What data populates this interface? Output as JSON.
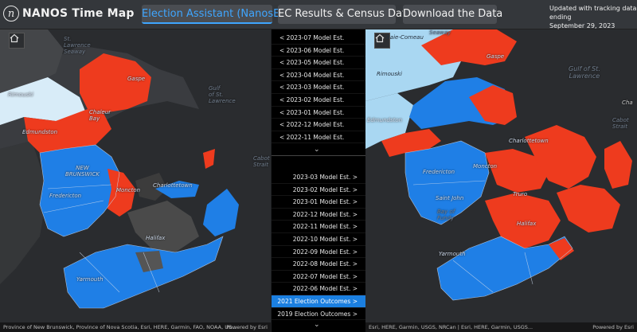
{
  "header": {
    "logo_glyph": "n",
    "title": "NANOS Time Map",
    "nav": [
      {
        "label": "Election Assistant (NanosEA)",
        "active": true
      },
      {
        "label": "EC Results & Census Data",
        "active": false
      },
      {
        "label": "Download the Data",
        "active": false
      }
    ],
    "updated_line1": "Updated with tracking data ending",
    "updated_line2": "September 29, 2023"
  },
  "left_map": {
    "home_icon": "home-icon",
    "labels": {
      "st_lawrence_seaway": "St.\nLawrence\nSeaway",
      "gulf": "Gulf\nof St.\nLawrence",
      "new_brunswick": "NEW\nBRUNSWICK",
      "fredericton": "Fredericton",
      "charlottetown": "Charlottetown",
      "moncton": "Moncton",
      "halifax": "Halifax",
      "yarmouth": "Yarmouth",
      "cabot": "Cabot\nStrait",
      "gaspe": "Gaspe",
      "edmundston": "Edmundston",
      "chaleur": "Chaleur\nBay",
      "rimouski": "Rimouski"
    },
    "attribution": "Province of New Brunswick, Province of Nova Scotia, Esri, HERE, Garmin, FAO, NOAA, US...",
    "powered": "Powered by Esri"
  },
  "right_map": {
    "home_icon": "home-icon",
    "labels": {
      "baie_comeau": "Baie-Comeau",
      "seaway": "Seaway",
      "rimouski": "Rimouski",
      "gaspe": "Gaspe",
      "gulf": "Gulf of St.\nLawrence",
      "edmundston": "Edmundston",
      "fredericton": "Fredericton",
      "moncton": "Moncton",
      "charlottetown": "Charlottetown",
      "saint_john": "Saint John",
      "truro": "Truro",
      "bay_of_fundy": "Bay of\nFundy",
      "halifax": "Halifax",
      "yarmouth": "Yarmouth",
      "cabot": "Cabot\nStrait",
      "cha": "Cha"
    },
    "attribution": "Esri, HERE, Garmin, USGS, NRCan | Esri, HERE, Garmin, USGS...",
    "powered": "Powered by Esri"
  },
  "center_panel": {
    "top_list": [
      "< 2023-07 Model Est.",
      "< 2023-06 Model Est.",
      "< 2023-05 Model Est.",
      "< 2023-04 Model Est.",
      "< 2023-03 Model Est.",
      "< 2023-02 Model Est.",
      "< 2023-01 Model Est.",
      "< 2022-12 Model Est.",
      "< 2022-11 Model Est."
    ],
    "bottom_list": [
      "2023-03 Model Est. >",
      "2023-02 Model Est. >",
      "2023-01 Model Est. >",
      "2022-12 Model Est. >",
      "2022-11 Model Est. >",
      "2022-10 Model Est. >",
      "2022-09 Model Est. >",
      "2022-08 Model Est. >",
      "2022-07 Model Est. >",
      "2022-06 Model Est. >",
      "2021 Election Outcomes >",
      "2019 Election Outcomes >"
    ],
    "selected": "2021 Election Outcomes >",
    "chevron": "⌄"
  },
  "colors": {
    "liberal_red": "#ee3b1e",
    "conservative_blue": "#1f7fe6",
    "other_gray": "#4a4a4a",
    "water": "#2a2c2f",
    "light_water": "#a9d7f2",
    "selected": "#1b7fe0"
  }
}
